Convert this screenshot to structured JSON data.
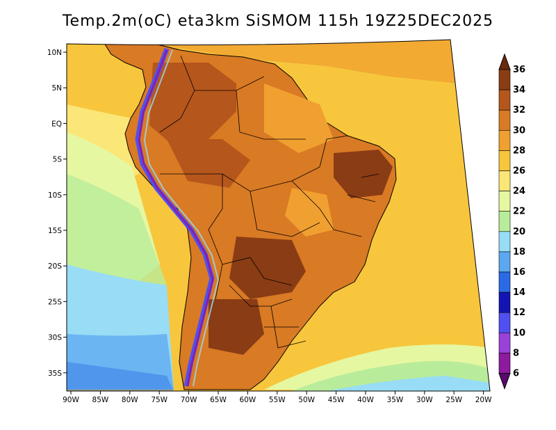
{
  "title": "Temp.2m(oC) eta3km SiSMOM 115h 19Z25DEC2025",
  "map": {
    "lat_labels": [
      "10N",
      "5N",
      "EQ",
      "5S",
      "10S",
      "15S",
      "20S",
      "25S",
      "30S",
      "35S"
    ],
    "lon_labels": [
      "90W",
      "85W",
      "80W",
      "75W",
      "70W",
      "65W",
      "60W",
      "55W",
      "50W",
      "45W",
      "40W",
      "35W",
      "30W",
      "25W",
      "20W"
    ]
  },
  "colorbar": {
    "levels": [
      "36",
      "34",
      "32",
      "30",
      "28",
      "26",
      "24",
      "22",
      "20",
      "18",
      "16",
      "14",
      "12",
      "10",
      "8",
      "6"
    ],
    "colors": [
      "#6a2a10",
      "#8a3c14",
      "#b5561c",
      "#d97a24",
      "#f0a030",
      "#f7c63c",
      "#fbe678",
      "#e6f7a2",
      "#b9ec9a",
      "#98dcf6",
      "#5ca8f0",
      "#2b6ae6",
      "#1414b4",
      "#5050f0",
      "#9a42d8",
      "#8e1a9e",
      "#5a0a6e"
    ]
  }
}
